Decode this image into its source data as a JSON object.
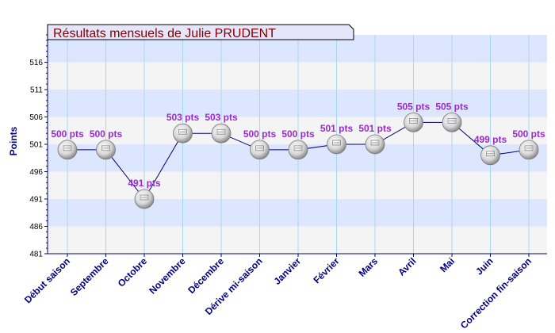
{
  "chart_data": {
    "type": "line",
    "title": "Résultats mensuels de  Julie PRUDENT",
    "ylabel": "Points",
    "xlabel": "",
    "categories": [
      "Début saison",
      "Septembre",
      "Octobre",
      "Novembre",
      "Décembre",
      "Dérive mi-saison",
      "Janvier",
      "Février",
      "Mars",
      "Avril",
      "Mai",
      "Juin",
      "Correction fin-saison"
    ],
    "values": [
      500,
      500,
      491,
      503,
      503,
      500,
      500,
      501,
      501,
      505,
      505,
      499,
      500
    ],
    "data_labels": [
      "500 pts",
      "500 pts",
      "491 pts",
      "503 pts",
      "503 pts",
      "500 pts",
      "500 pts",
      "501 pts",
      "501 pts",
      "505 pts",
      "505 pts",
      "499 pts",
      "500 pts"
    ],
    "ylim": [
      481,
      521
    ],
    "yticks": [
      "481",
      "486",
      "491",
      "496",
      "501",
      "506",
      "511",
      "516"
    ],
    "grid": true,
    "colors": {
      "line": "#000080",
      "band_light": "#f4f4f4",
      "band_blue": "#dce6ff",
      "label": "#9a2ad0",
      "title": "#800000",
      "title_bg": "#e6e6fa",
      "marker": "#d8d8d8"
    }
  }
}
